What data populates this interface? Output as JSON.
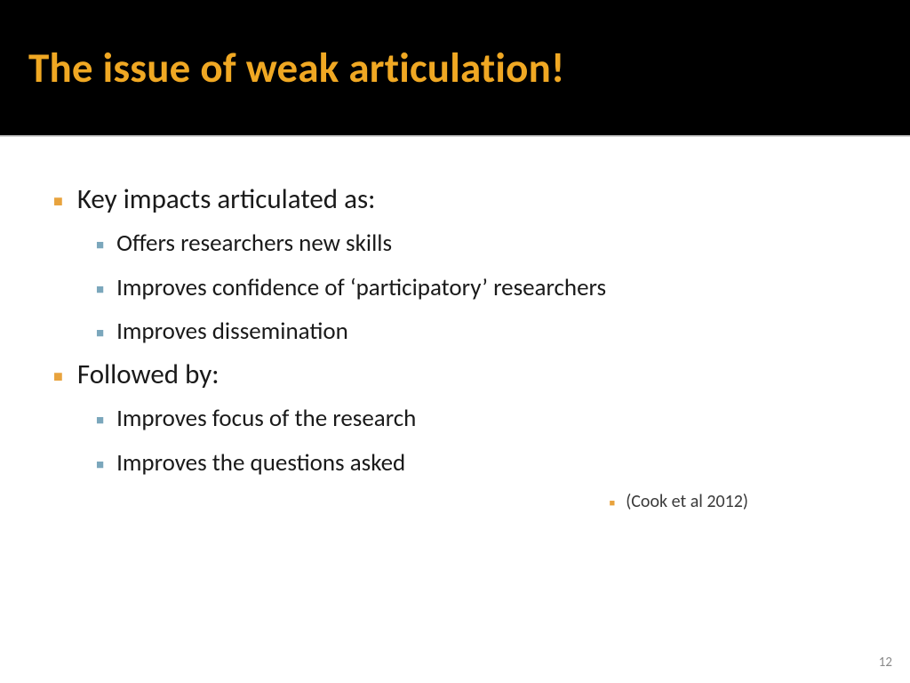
{
  "slide": {
    "title": "The issue of weak articulation!",
    "title_color": "#f0a823",
    "header_bg": "#000000",
    "body_bg": "#ffffff",
    "body_text_color": "#1a1a1a",
    "bullet_l1_color": "#e8a33d",
    "bullet_l2_color": "#7ba7bc",
    "title_fontsize": 47,
    "l1_fontsize": 31,
    "l2_fontsize": 27,
    "citation_fontsize": 20,
    "page_number": "12"
  },
  "content": {
    "section1": {
      "heading": "Key impacts articulated as:",
      "items": [
        "Offers researchers new skills",
        "Improves confidence of ‘participatory’ researchers",
        "Improves dissemination"
      ]
    },
    "section2": {
      "heading": "Followed by:",
      "items": [
        "Improves focus of the research",
        "Improves the questions asked"
      ]
    },
    "citation": "(Cook et al 2012)"
  }
}
